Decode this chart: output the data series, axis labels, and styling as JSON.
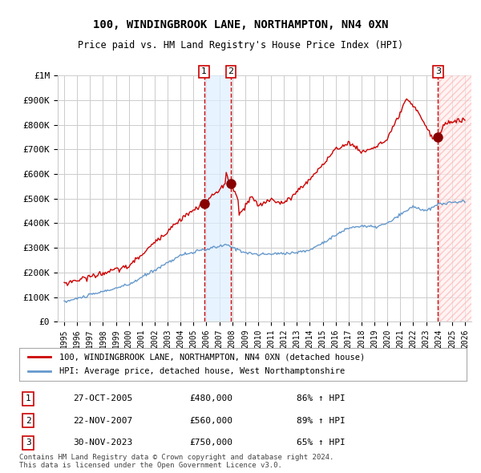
{
  "title": "100, WINDINGBROOK LANE, NORTHAMPTON, NN4 0XN",
  "subtitle": "Price paid vs. HM Land Registry's House Price Index (HPI)",
  "footer1": "Contains HM Land Registry data © Crown copyright and database right 2024.",
  "footer2": "This data is licensed under the Open Government Licence v3.0.",
  "legend_red": "100, WINDINGBROOK LANE, NORTHAMPTON, NN4 0XN (detached house)",
  "legend_blue": "HPI: Average price, detached house, West Northamptonshire",
  "transactions": [
    {
      "label": "1",
      "date": "27-OCT-2005",
      "price": 480000,
      "hpi_pct": "86% ↑ HPI",
      "x": 2005.82
    },
    {
      "label": "2",
      "date": "22-NOV-2007",
      "price": 560000,
      "hpi_pct": "89% ↑ HPI",
      "x": 2007.89
    },
    {
      "label": "3",
      "date": "30-NOV-2023",
      "price": 750000,
      "hpi_pct": "65% ↑ HPI",
      "x": 2023.92
    }
  ],
  "xlim": [
    1994.5,
    2026.5
  ],
  "ylim": [
    0,
    1000000
  ],
  "yticks": [
    0,
    100000,
    200000,
    300000,
    400000,
    500000,
    600000,
    700000,
    800000,
    900000,
    1000000
  ],
  "ytick_labels": [
    "£0",
    "£100K",
    "£200K",
    "£300K",
    "£400K",
    "£500K",
    "£600K",
    "£700K",
    "£800K",
    "£900K",
    "£1M"
  ],
  "bg_color": "#ffffff",
  "grid_color": "#cccccc",
  "red_color": "#cc0000",
  "blue_color": "#6699cc",
  "shade_color": "#ddeeff"
}
